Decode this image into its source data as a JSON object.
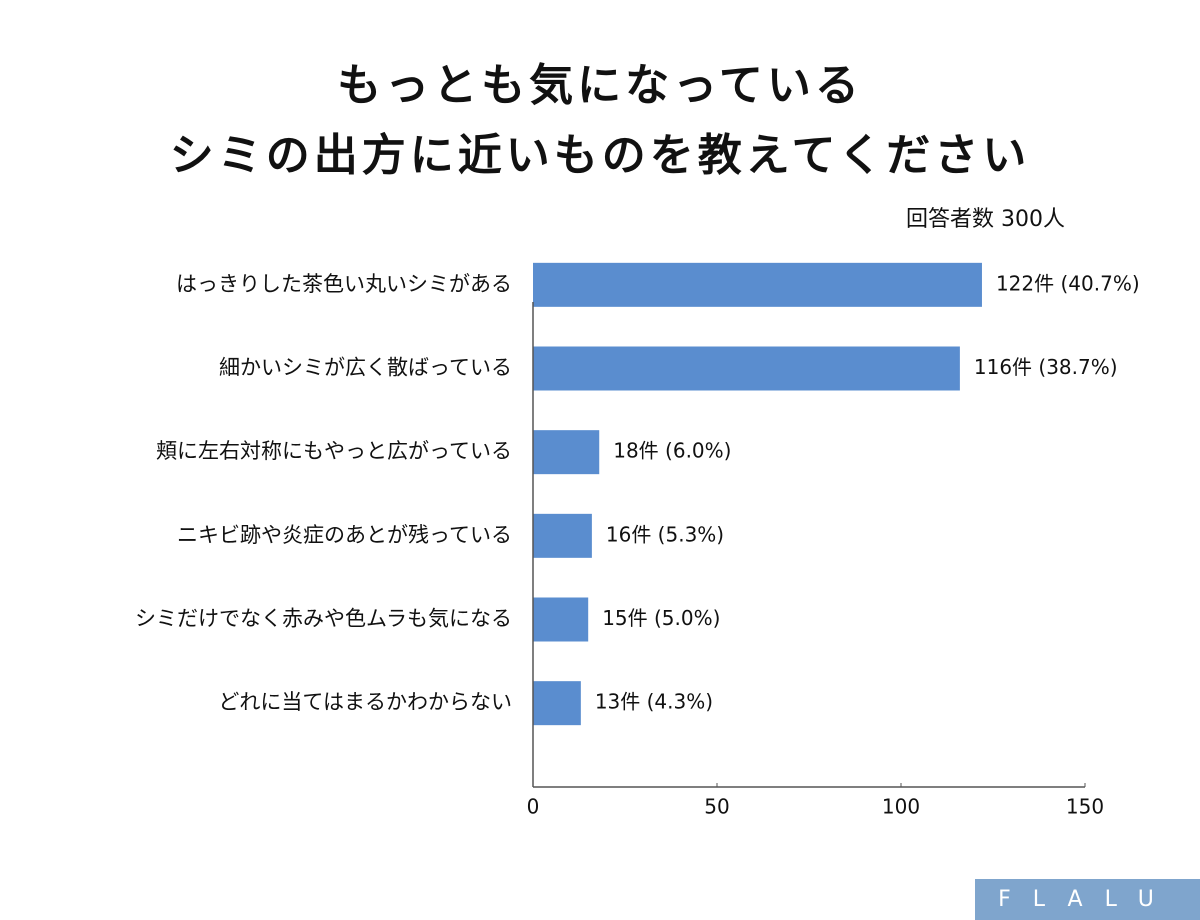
{
  "chart_data": {
    "type": "bar",
    "orientation": "horizontal",
    "title": [
      "もっとも気になっている",
      "シミの出方に近いものを教えてください"
    ],
    "subtitle": "回答者数 300人",
    "categories": [
      "はっきりした茶色い丸いシミがある",
      "細かいシミが広く散ばっている",
      "頬に左右対称にもやっと広がっている",
      "ニキビ跡や炎症のあとが残っている",
      "シミだけでなく赤みや色ムラも気になる",
      "どれに当てはまるかわからない"
    ],
    "values": [
      122,
      116,
      18,
      16,
      15,
      13
    ],
    "value_labels": [
      "122件 (40.7%)",
      "116件 (38.7%)",
      "18件 (6.0%)",
      "16件 (5.3%)",
      "15件 (5.0%)",
      "13件 (4.3%)"
    ],
    "color": "#5a8dcf",
    "xlim": [
      0,
      150
    ],
    "xticks": [
      0,
      50,
      100,
      150
    ],
    "grid": false,
    "logo": "FLALU"
  }
}
